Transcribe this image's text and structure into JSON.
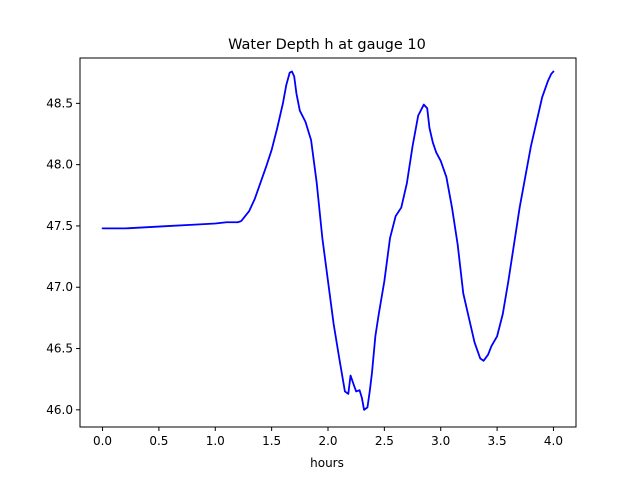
{
  "chart_data": {
    "type": "line",
    "title": "Water Depth h at gauge 10",
    "xlabel": "hours",
    "ylabel": "",
    "xlim": [
      -0.2,
      4.2
    ],
    "ylim": [
      45.86,
      48.87
    ],
    "xticks": [
      0.0,
      0.5,
      1.0,
      1.5,
      2.0,
      2.5,
      3.0,
      3.5,
      4.0
    ],
    "xtick_labels": [
      "0.0",
      "0.5",
      "1.0",
      "1.5",
      "2.0",
      "2.5",
      "3.0",
      "3.5",
      "4.0"
    ],
    "yticks": [
      46.0,
      46.5,
      47.0,
      47.5,
      48.0,
      48.5
    ],
    "ytick_labels": [
      "46.0",
      "46.5",
      "47.0",
      "47.5",
      "48.0",
      "48.5"
    ],
    "grid": false,
    "legend": "none",
    "series": [
      {
        "color": "#0000ff",
        "x": [
          0.0,
          0.2,
          0.4,
          0.6,
          0.8,
          1.0,
          1.1,
          1.2,
          1.23,
          1.3,
          1.35,
          1.4,
          1.45,
          1.5,
          1.55,
          1.6,
          1.63,
          1.66,
          1.68,
          1.7,
          1.72,
          1.75,
          1.8,
          1.85,
          1.9,
          1.95,
          2.0,
          2.05,
          2.1,
          2.15,
          2.18,
          2.2,
          2.23,
          2.25,
          2.28,
          2.3,
          2.32,
          2.35,
          2.37,
          2.39,
          2.42,
          2.45,
          2.5,
          2.55,
          2.6,
          2.65,
          2.7,
          2.75,
          2.8,
          2.85,
          2.88,
          2.9,
          2.93,
          2.96,
          3.0,
          3.05,
          3.1,
          3.15,
          3.2,
          3.25,
          3.3,
          3.35,
          3.38,
          3.42,
          3.45,
          3.5,
          3.55,
          3.6,
          3.65,
          3.7,
          3.75,
          3.8,
          3.85,
          3.9,
          3.95,
          3.98,
          4.0
        ],
        "y": [
          47.48,
          47.48,
          47.49,
          47.5,
          47.51,
          47.52,
          47.53,
          47.53,
          47.54,
          47.62,
          47.72,
          47.85,
          47.98,
          48.12,
          48.3,
          48.5,
          48.65,
          48.75,
          48.76,
          48.72,
          48.58,
          48.44,
          48.35,
          48.2,
          47.85,
          47.4,
          47.05,
          46.7,
          46.42,
          46.15,
          46.13,
          46.28,
          46.2,
          46.15,
          46.16,
          46.1,
          46.0,
          46.02,
          46.15,
          46.3,
          46.6,
          46.78,
          47.05,
          47.4,
          47.58,
          47.65,
          47.85,
          48.15,
          48.4,
          48.49,
          48.46,
          48.3,
          48.18,
          48.1,
          48.03,
          47.9,
          47.65,
          47.35,
          46.95,
          46.75,
          46.55,
          46.42,
          46.4,
          46.45,
          46.52,
          46.6,
          46.78,
          47.05,
          47.35,
          47.65,
          47.9,
          48.15,
          48.35,
          48.55,
          48.68,
          48.74,
          48.76
        ]
      }
    ]
  }
}
